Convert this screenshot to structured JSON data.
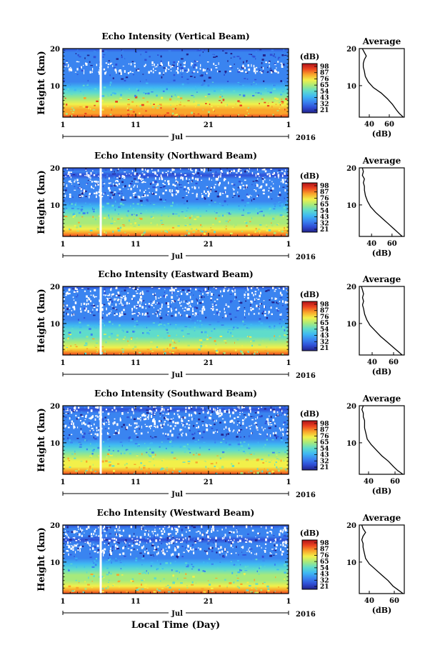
{
  "chart_data": [
    {
      "type": "heatmap",
      "title": "Echo Intensity (Vertical Beam)",
      "ylabel": "Height (km)",
      "xlabel": "",
      "month_label": "Jul",
      "year_label": "2016",
      "x_ticks": [
        "1",
        "11",
        "21",
        "1"
      ],
      "y_ticks": [
        "20",
        "10"
      ],
      "ylim": [
        1.5,
        20
      ],
      "colorbar_unit": "(dB)",
      "colorbar_ticks": [
        "98",
        "87",
        "76",
        "65",
        "54",
        "43",
        "32",
        "21"
      ],
      "profile": {
        "title": "Average",
        "xlabel": "(dB)",
        "x_ticks": [
          "40",
          "60"
        ],
        "y_ticks": [
          "20",
          "10"
        ],
        "xlim": [
          30,
          75
        ],
        "heights": [
          1.5,
          2.5,
          3.5,
          5,
          6.5,
          8,
          9.5,
          11,
          12.5,
          14,
          15,
          16,
          17,
          18,
          19,
          20
        ],
        "values": [
          74,
          70,
          67,
          63,
          58,
          52,
          44,
          39,
          36,
          35,
          34,
          34,
          35,
          37,
          35,
          33
        ]
      }
    },
    {
      "type": "heatmap",
      "title": "Echo Intensity (Northward Beam)",
      "ylabel": "Height (km)",
      "xlabel": "",
      "month_label": "Jul",
      "year_label": "2016",
      "x_ticks": [
        "1",
        "11",
        "21",
        "1"
      ],
      "y_ticks": [
        "20",
        "10"
      ],
      "ylim": [
        1.5,
        20
      ],
      "colorbar_unit": "(dB)",
      "colorbar_ticks": [
        "98",
        "87",
        "76",
        "65",
        "54",
        "43",
        "32",
        "21"
      ],
      "profile": {
        "title": "Average",
        "xlabel": "(dB)",
        "x_ticks": [
          "40",
          "60"
        ],
        "y_ticks": [
          "20",
          "10"
        ],
        "xlim": [
          28,
          72
        ],
        "heights": [
          1.5,
          2.5,
          3.5,
          5,
          6.5,
          8,
          9.5,
          11,
          12.5,
          14,
          15,
          16,
          17,
          18,
          19,
          20
        ],
        "values": [
          70,
          66,
          62,
          56,
          50,
          44,
          39,
          36,
          34,
          33,
          33,
          32,
          33,
          31,
          32,
          31
        ]
      }
    },
    {
      "type": "heatmap",
      "title": "Echo Intensity (Eastward Beam)",
      "ylabel": "Height (km)",
      "xlabel": "",
      "month_label": "Jul",
      "year_label": "2016",
      "x_ticks": [
        "1",
        "11",
        "21",
        "1"
      ],
      "y_ticks": [
        "20",
        "10"
      ],
      "ylim": [
        1.5,
        20
      ],
      "colorbar_unit": "(dB)",
      "colorbar_ticks": [
        "98",
        "87",
        "76",
        "65",
        "54",
        "43",
        "32",
        "21"
      ],
      "profile": {
        "title": "Average",
        "xlabel": "(dB)",
        "x_ticks": [
          "40",
          "60"
        ],
        "y_ticks": [
          "20",
          "10"
        ],
        "xlim": [
          28,
          70
        ],
        "heights": [
          1.5,
          2.5,
          3.5,
          5,
          6.5,
          8,
          9.5,
          11,
          12.5,
          14,
          15,
          16,
          17,
          18,
          19,
          20
        ],
        "values": [
          68,
          64,
          60,
          54,
          48,
          43,
          38,
          35,
          33,
          32,
          31,
          32,
          31,
          32,
          31,
          30
        ]
      }
    },
    {
      "type": "heatmap",
      "title": "Echo Intensity (Southward Beam)",
      "ylabel": "Height (km)",
      "xlabel": "",
      "month_label": "Jul",
      "year_label": "2016",
      "x_ticks": [
        "1",
        "11",
        "21",
        "1"
      ],
      "y_ticks": [
        "20",
        "10"
      ],
      "ylim": [
        1.5,
        20
      ],
      "colorbar_unit": "(dB)",
      "colorbar_ticks": [
        "98",
        "87",
        "76",
        "65",
        "54",
        "43",
        "32",
        "21"
      ],
      "profile": {
        "title": "Average",
        "xlabel": "(dB)",
        "x_ticks": [
          "40",
          "60"
        ],
        "y_ticks": [
          "20",
          "10"
        ],
        "xlim": [
          33,
          67
        ],
        "heights": [
          1.5,
          2.5,
          3.5,
          5,
          6.5,
          8,
          9.5,
          11,
          12.5,
          14,
          15,
          16,
          17,
          18,
          19,
          20
        ],
        "values": [
          66,
          62,
          59,
          55,
          50,
          46,
          42,
          39,
          38,
          37,
          37,
          37,
          36,
          36,
          35,
          36
        ]
      }
    },
    {
      "type": "heatmap",
      "title": "Echo Intensity (Westward Beam)",
      "ylabel": "Height (km)",
      "xlabel": "Local Time (Day)",
      "month_label": "Jul",
      "year_label": "2016",
      "x_ticks": [
        "1",
        "11",
        "21",
        "1"
      ],
      "y_ticks": [
        "20",
        "10"
      ],
      "ylim": [
        1.5,
        20
      ],
      "colorbar_unit": "(dB)",
      "colorbar_ticks": [
        "98",
        "87",
        "76",
        "65",
        "54",
        "43",
        "32",
        "21"
      ],
      "profile": {
        "title": "Average",
        "xlabel": "(dB)",
        "x_ticks": [
          "40",
          "60"
        ],
        "y_ticks": [
          "20",
          "10"
        ],
        "xlim": [
          32,
          68
        ],
        "heights": [
          1.5,
          2.5,
          3.5,
          5,
          6.5,
          8,
          9.5,
          11,
          12.5,
          14,
          15,
          16,
          17,
          18,
          19,
          20
        ],
        "values": [
          67,
          63,
          59,
          55,
          50,
          45,
          40,
          37,
          36,
          35,
          35,
          34,
          35,
          37,
          35,
          34
        ]
      }
    }
  ],
  "colors": {
    "background": "#ffffff",
    "axis": "#000000",
    "colormap": [
      "#23238c",
      "#2f4fd6",
      "#3a84f0",
      "#3fb9f2",
      "#5fdccb",
      "#a7ea7c",
      "#f2f04a",
      "#f9a52b",
      "#ec4420",
      "#b0121a"
    ]
  }
}
